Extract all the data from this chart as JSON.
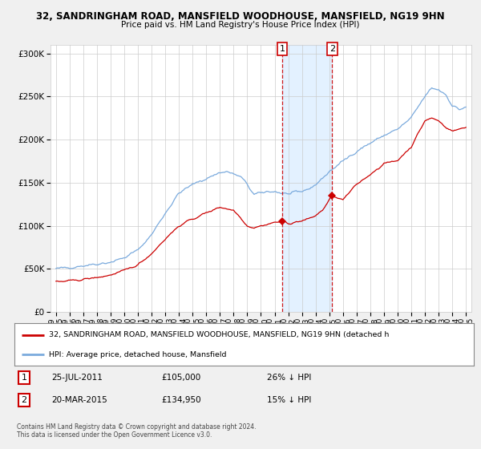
{
  "title1": "32, SANDRINGHAM ROAD, MANSFIELD WOODHOUSE, MANSFIELD, NG19 9HN",
  "title2": "Price paid vs. HM Land Registry's House Price Index (HPI)",
  "legend_red": "32, SANDRINGHAM ROAD, MANSFIELD WOODHOUSE, MANSFIELD, NG19 9HN (detached h",
  "legend_blue": "HPI: Average price, detached house, Mansfield",
  "transaction1_date": "25-JUL-2011",
  "transaction1_price": 105000,
  "transaction1_hpi": "26% ↓ HPI",
  "transaction2_date": "20-MAR-2015",
  "transaction2_price": 134950,
  "transaction2_hpi": "15% ↓ HPI",
  "footer": "Contains HM Land Registry data © Crown copyright and database right 2024.\nThis data is licensed under the Open Government Licence v3.0.",
  "ylim": [
    0,
    310000
  ],
  "yticks": [
    0,
    50000,
    100000,
    150000,
    200000,
    250000,
    300000
  ],
  "background_color": "#f0f0f0",
  "plot_bg": "#ffffff",
  "red_color": "#cc0000",
  "blue_color": "#7aaadd",
  "shade_color": "#ddeeff",
  "marker1_x_year": 2011.56,
  "marker2_x_year": 2015.22,
  "shade_x1": 2011.56,
  "shade_x2": 2015.22,
  "xlim_left": 1994.6,
  "xlim_right": 2025.4
}
